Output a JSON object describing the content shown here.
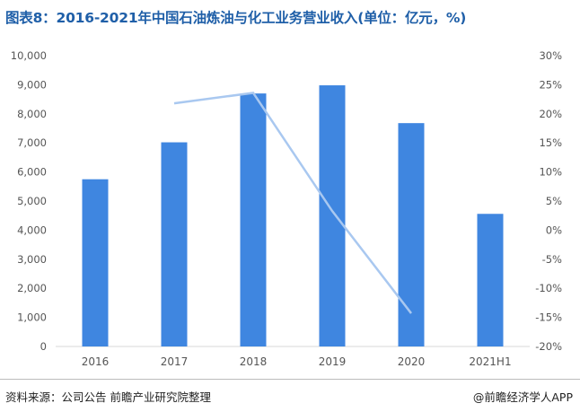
{
  "title": "图表8：2016-2021年中国石油炼油与化工业务营业收入(单位：亿元，%)",
  "footer": {
    "source": "资料来源：公司公告 前瞻产业研究院整理",
    "brand": "@前瞻经济学人APP"
  },
  "colors": {
    "bar": "#3f86e0",
    "line": "#a9c8f0",
    "title": "#1f5fa8",
    "axis_text": "#555555",
    "axis_line": "#d9d9d9"
  },
  "chart_data": {
    "type": "bar",
    "title": "图表8：2016-2021年中国石油炼油与化工业务营业收入(单位：亿元，%)",
    "categories": [
      "2016",
      "2017",
      "2018",
      "2019",
      "2020",
      "2021H1"
    ],
    "series": [
      {
        "type": "bar",
        "axis": "left",
        "values": [
          5750,
          7020,
          8700,
          8980,
          7680,
          4560
        ]
      },
      {
        "type": "line",
        "axis": "right",
        "values": [
          null,
          21.8,
          23.6,
          3.3,
          -14.3,
          null
        ]
      }
    ],
    "y_left": {
      "ylim": [
        0,
        10000
      ],
      "ticks": [
        "0",
        "1,000",
        "2,000",
        "3,000",
        "4,000",
        "5,000",
        "6,000",
        "7,000",
        "8,000",
        "9,000",
        "10,000"
      ]
    },
    "y_right": {
      "ylim": [
        -20,
        30
      ],
      "ticks": [
        "-20%",
        "-15%",
        "-10%",
        "-5%",
        "0%",
        "5%",
        "10%",
        "15%",
        "20%",
        "25%",
        "30%"
      ]
    },
    "grid": false
  }
}
